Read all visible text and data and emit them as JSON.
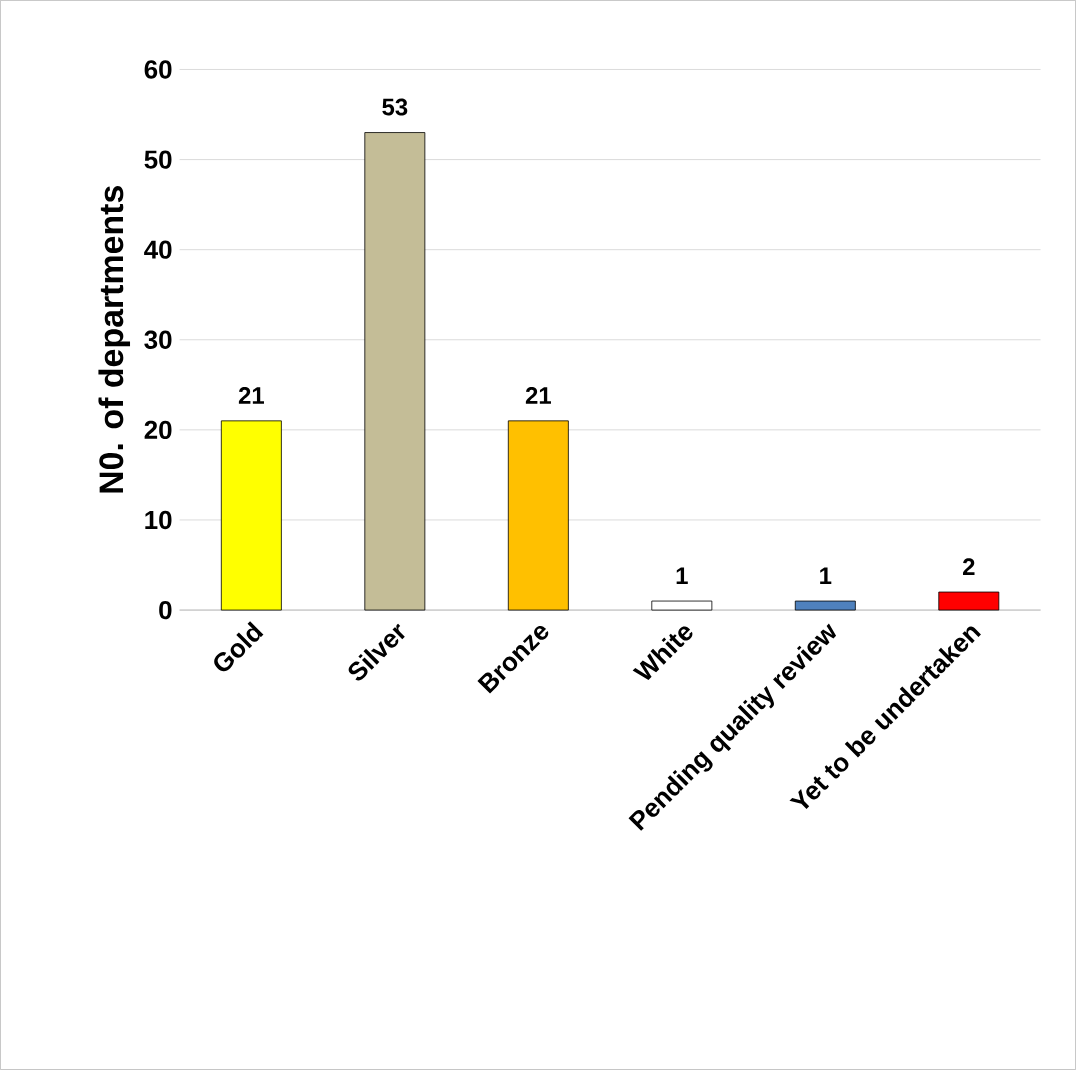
{
  "chart_data": {
    "type": "bar",
    "ylabel": "N0. of departments",
    "categories": [
      "Gold",
      "Silver",
      "Bronze",
      "White",
      "Pending quality review",
      "Yet to be undertaken"
    ],
    "values": [
      21,
      53,
      21,
      1,
      1,
      2
    ],
    "colors": [
      "#ffff00",
      "#c4bd97",
      "#ffc000",
      "#ffffff",
      "#4f81bd",
      "#ff0000"
    ],
    "ylim": [
      0,
      60
    ],
    "yticks": [
      0,
      10,
      20,
      30,
      40,
      50,
      60
    ],
    "grid": "y",
    "data_labels": true
  }
}
